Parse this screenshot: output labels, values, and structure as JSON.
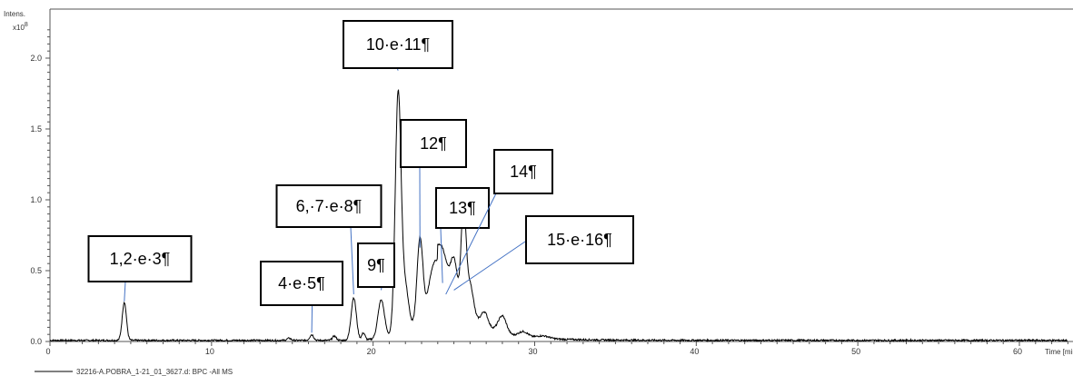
{
  "chart_data": {
    "type": "line",
    "ylabel_line1": "Intens.",
    "ylabel_line2": "x10",
    "ylabel_exp": "8",
    "xlabel": "Time [min]",
    "xlim": [
      0,
      63
    ],
    "ylim": [
      0,
      2.2
    ],
    "x_ticks": [
      0,
      10,
      20,
      30,
      40,
      50,
      60
    ],
    "x_tick_labels": [
      "0",
      "10",
      "20",
      "30",
      "40",
      "50",
      "60"
    ],
    "y_ticks": [
      0.0,
      0.5,
      1.0,
      1.5,
      2.0
    ],
    "y_tick_labels": [
      "0.0",
      "0.5",
      "1.0",
      "1.5",
      "2.0"
    ],
    "legend": "32216-A.POBRA_1-21_01_3627.d: BPC -All MS",
    "series_color": "#000000",
    "callout_color": "#4472c4",
    "peaks": [
      {
        "rt": 4.6,
        "height": 0.27,
        "width": 0.13
      },
      {
        "rt": 14.8,
        "height": 0.015,
        "width": 0.12
      },
      {
        "rt": 16.2,
        "height": 0.04,
        "width": 0.12
      },
      {
        "rt": 17.6,
        "height": 0.03,
        "width": 0.12
      },
      {
        "rt": 18.8,
        "height": 0.3,
        "width": 0.16
      },
      {
        "rt": 19.4,
        "height": 0.05,
        "width": 0.1
      },
      {
        "rt": 20.5,
        "height": 0.27,
        "width": 0.2
      },
      {
        "rt": 21.55,
        "height": 1.7,
        "width": 0.18
      },
      {
        "rt": 22.0,
        "height": 0.3,
        "width": 0.2
      },
      {
        "rt": 22.9,
        "height": 0.6,
        "width": 0.18
      },
      {
        "rt": 23.7,
        "height": 0.32,
        "width": 0.3
      },
      {
        "rt": 24.3,
        "height": 0.34,
        "width": 0.3
      },
      {
        "rt": 25.0,
        "height": 0.32,
        "width": 0.22
      },
      {
        "rt": 25.6,
        "height": 0.74,
        "width": 0.15
      },
      {
        "rt": 26.0,
        "height": 0.22,
        "width": 0.2
      },
      {
        "rt": 26.9,
        "height": 0.09,
        "width": 0.2
      },
      {
        "rt": 28.0,
        "height": 0.12,
        "width": 0.25
      },
      {
        "rt": 29.3,
        "height": 0.04,
        "width": 0.3
      },
      {
        "rt": 30.5,
        "height": 0.02,
        "width": 0.4
      }
    ],
    "hump": {
      "rt": 24.5,
      "height": 0.18,
      "width": 1.8
    },
    "tail": {
      "start": 24.0,
      "height": 0.1,
      "decay": 3.0
    },
    "annotations": [
      {
        "label": "1,2·e·3¶",
        "x": 4.6,
        "y": 0.27
      },
      {
        "label": "4·e·5¶",
        "x": 16.2,
        "y": 0.05
      },
      {
        "label": "6,·7·e·8¶",
        "x": 18.8,
        "y": 0.32
      },
      {
        "label": "9¶",
        "x": 20.5,
        "y": 0.35
      },
      {
        "label": "10·e·11¶",
        "x": 21.55,
        "y": 1.9
      },
      {
        "label": "12¶",
        "x": 22.9,
        "y": 0.65
      },
      {
        "label": "13¶",
        "x": 24.3,
        "y": 0.4
      },
      {
        "label": "14¶",
        "x": 24.5,
        "y": 0.32
      },
      {
        "label": "15·e·16¶",
        "x": 25.0,
        "y": 0.35
      }
    ]
  }
}
